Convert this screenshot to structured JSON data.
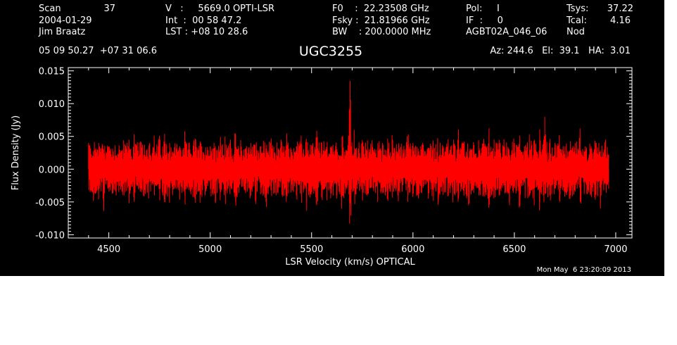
{
  "header": {
    "scan_label": "Scan",
    "scan_value": "37",
    "date": "2004-01-29",
    "observer": "Jim Braatz",
    "ra_dec": "05 09 50.27  +07 31 06.6",
    "v_line": "V   :     5669.0 OPTI-LSR",
    "int_line": "Int  :  00 58 47.2",
    "lst_line": "LST : +08 10 28.6",
    "f0_line": "F0    :  22.23508 GHz",
    "fsky_line": "Fsky :  21.81966 GHz",
    "bw_line": "BW    : 200.0000 MHz",
    "pol_line": "Pol:     I",
    "if_line": "IF  :     0",
    "project": "AGBT02A_046_06",
    "tsys_label": "Tsys:",
    "tsys_value": "37.22",
    "tcal_label": "Tcal:",
    "tcal_value": "4.16",
    "nod": "Nod",
    "az_el_ha": "Az: 244.6   El:  39.1   HA:  3.01"
  },
  "timestamp": "Mon May  6 23:20:09 2013",
  "colors": {
    "background": "#000000",
    "axes": "#ffffff",
    "trace": "#ff0000"
  },
  "chart_data": {
    "type": "line",
    "title": "UGC3255",
    "xlabel": "LSR Velocity (km/s) OPTICAL",
    "ylabel": "Flux Density (Jy)",
    "xlim": [
      4300,
      7080
    ],
    "ylim": [
      -0.0105,
      0.0155
    ],
    "x_ticks": [
      4500,
      5000,
      5500,
      6000,
      6500,
      7000
    ],
    "y_ticks": [
      -0.01,
      -0.005,
      0.0,
      0.005,
      0.01,
      0.015
    ],
    "y_tick_labels": [
      "-0.010",
      "-0.005",
      "0.000",
      "0.005",
      "0.010",
      "0.015"
    ],
    "grid": false,
    "series": [
      {
        "x": [
          4400,
          4425,
          4450,
          4475,
          4500,
          4525,
          4550,
          4575,
          4600,
          4625,
          4650,
          4675,
          4700,
          4725,
          4750,
          4775,
          4800,
          4825,
          4850,
          4875,
          4900,
          4925,
          4950,
          4975,
          5000,
          5025,
          5050,
          5075,
          5100,
          5125,
          5150,
          5175,
          5200,
          5225,
          5250,
          5275,
          5300,
          5325,
          5350,
          5375,
          5400,
          5425,
          5450,
          5475,
          5500,
          5525,
          5550,
          5575,
          5600,
          5625,
          5650,
          5675,
          5690,
          5700,
          5710,
          5725,
          5750,
          5775,
          5800,
          5825,
          5850,
          5875,
          5900,
          5925,
          5950,
          5975,
          6000,
          6025,
          6050,
          6075,
          6100,
          6125,
          6150,
          6175,
          6200,
          6225,
          6250,
          6275,
          6300,
          6325,
          6350,
          6375,
          6400,
          6425,
          6450,
          6475,
          6500,
          6525,
          6550,
          6575,
          6600,
          6625,
          6650,
          6675,
          6700,
          6725,
          6750,
          6775,
          6800,
          6825,
          6850,
          6875,
          6900,
          6925,
          6950,
          6965
        ],
        "values": [
          0.004,
          -0.004,
          0.004,
          -0.005,
          0.0035,
          -0.003,
          0.003,
          -0.004,
          0.0045,
          -0.005,
          0.003,
          -0.003,
          0.004,
          -0.004,
          0.0045,
          -0.005,
          0.004,
          -0.003,
          0.0035,
          -0.004,
          0.003,
          -0.0045,
          0.004,
          -0.004,
          0.0035,
          -0.005,
          0.004,
          -0.004,
          0.0045,
          -0.005,
          0.003,
          -0.0035,
          0.004,
          -0.0045,
          0.0035,
          -0.005,
          0.004,
          -0.004,
          0.0045,
          -0.005,
          0.003,
          -0.004,
          0.004,
          -0.005,
          0.0035,
          -0.0055,
          0.004,
          -0.0045,
          0.0035,
          -0.004,
          0.005,
          -0.002,
          0.0135,
          -0.001,
          0.006,
          -0.003,
          0.004,
          -0.004,
          0.0035,
          -0.005,
          0.004,
          -0.0045,
          0.0045,
          -0.004,
          0.003,
          -0.005,
          0.004,
          -0.004,
          0.0035,
          -0.0045,
          0.004,
          -0.005,
          0.0035,
          -0.004,
          0.0045,
          -0.0045,
          0.004,
          -0.005,
          0.0035,
          -0.004,
          0.004,
          -0.005,
          0.0045,
          -0.004,
          0.0035,
          -0.005,
          0.004,
          -0.0045,
          0.0035,
          -0.004,
          0.0045,
          -0.005,
          0.008,
          -0.004,
          0.004,
          -0.005,
          0.0035,
          -0.0045,
          0.004,
          -0.005,
          0.0035,
          -0.004,
          0.004,
          -0.006,
          0.0045,
          -0.003
        ]
      }
    ]
  }
}
